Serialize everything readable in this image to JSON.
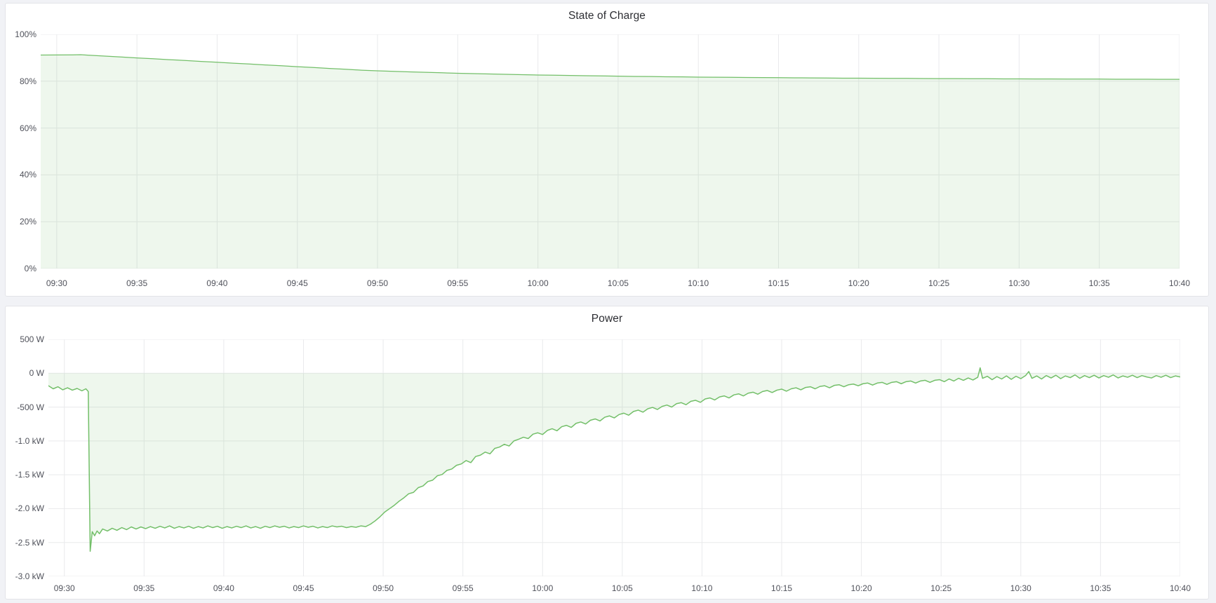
{
  "panels": [
    {
      "title": "State of Charge"
    },
    {
      "title": "Power"
    }
  ],
  "colors": {
    "line_green": "#73bf69",
    "fill_green": "rgba(115,191,105,0.12)",
    "grid": "#e9eaec",
    "axis_text": "#50525b",
    "panel_bg": "#ffffff",
    "page_bg": "#f1f2f6"
  },
  "chart_data": [
    {
      "type": "area",
      "title": "State of Charge",
      "series_name": "State of Charge",
      "unit": "percent",
      "legend": "none",
      "grid": "on",
      "baseline": 0,
      "x_axis": {
        "range_minutes": [
          -1,
          70
        ],
        "tick_minutes": [
          0,
          5,
          10,
          15,
          20,
          25,
          30,
          35,
          40,
          45,
          50,
          55,
          60,
          65,
          70
        ],
        "tick_labels": [
          "09:30",
          "09:35",
          "09:40",
          "09:45",
          "09:50",
          "09:55",
          "10:00",
          "10:05",
          "10:10",
          "10:15",
          "10:20",
          "10:25",
          "10:30",
          "10:35",
          "10:40"
        ]
      },
      "y_axis": {
        "range": [
          0,
          100
        ],
        "tick_values": [
          0,
          20,
          40,
          60,
          80,
          100
        ],
        "tick_labels": [
          "0%",
          "20%",
          "40%",
          "60%",
          "80%",
          "100%"
        ]
      },
      "points": [
        [
          -1,
          91.15
        ],
        [
          0,
          91.2
        ],
        [
          1,
          91.25
        ],
        [
          1.5,
          91.3
        ],
        [
          2,
          91.1
        ],
        [
          3,
          90.7
        ],
        [
          4,
          90.35
        ],
        [
          5,
          89.95
        ],
        [
          6,
          89.6
        ],
        [
          7,
          89.2
        ],
        [
          8,
          88.85
        ],
        [
          9,
          88.45
        ],
        [
          10,
          88.1
        ],
        [
          11,
          87.7
        ],
        [
          12,
          87.35
        ],
        [
          13,
          86.95
        ],
        [
          14,
          86.6
        ],
        [
          15,
          86.2
        ],
        [
          16,
          85.85
        ],
        [
          17,
          85.45
        ],
        [
          18,
          85.1
        ],
        [
          19,
          84.7
        ],
        [
          20,
          84.45
        ],
        [
          21,
          84.2
        ],
        [
          22,
          84.0
        ],
        [
          23,
          83.8
        ],
        [
          24,
          83.6
        ],
        [
          25,
          83.4
        ],
        [
          26,
          83.25
        ],
        [
          27,
          83.1
        ],
        [
          28,
          82.95
        ],
        [
          29,
          82.8
        ],
        [
          30,
          82.65
        ],
        [
          31,
          82.55
        ],
        [
          32,
          82.45
        ],
        [
          33,
          82.35
        ],
        [
          34,
          82.25
        ],
        [
          35,
          82.15
        ],
        [
          36,
          82.05
        ],
        [
          37,
          82.0
        ],
        [
          38,
          81.9
        ],
        [
          39,
          81.85
        ],
        [
          40,
          81.75
        ],
        [
          41,
          81.7
        ],
        [
          42,
          81.65
        ],
        [
          43,
          81.6
        ],
        [
          44,
          81.55
        ],
        [
          45,
          81.5
        ],
        [
          46,
          81.45
        ],
        [
          47,
          81.4
        ],
        [
          48,
          81.35
        ],
        [
          49,
          81.3
        ],
        [
          50,
          81.3
        ],
        [
          51,
          81.25
        ],
        [
          52,
          81.2
        ],
        [
          53,
          81.2
        ],
        [
          54,
          81.15
        ],
        [
          55,
          81.1
        ],
        [
          56,
          81.1
        ],
        [
          57,
          81.05
        ],
        [
          58,
          81.05
        ],
        [
          59,
          81.0
        ],
        [
          60,
          81.0
        ],
        [
          61,
          80.95
        ],
        [
          62,
          80.95
        ],
        [
          63,
          80.9
        ],
        [
          64,
          80.9
        ],
        [
          65,
          80.9
        ],
        [
          66,
          80.85
        ],
        [
          67,
          80.85
        ],
        [
          68,
          80.85
        ],
        [
          69,
          80.8
        ],
        [
          70,
          80.8
        ]
      ]
    },
    {
      "type": "area",
      "title": "Power",
      "series_name": "Power",
      "unit": "watt",
      "legend": "none",
      "grid": "on",
      "baseline": 0,
      "x_axis": {
        "range_minutes": [
          -1,
          70
        ],
        "tick_minutes": [
          0,
          5,
          10,
          15,
          20,
          25,
          30,
          35,
          40,
          45,
          50,
          55,
          60,
          65,
          70
        ],
        "tick_labels": [
          "09:30",
          "09:35",
          "09:40",
          "09:45",
          "09:50",
          "09:55",
          "10:00",
          "10:05",
          "10:10",
          "10:15",
          "10:20",
          "10:25",
          "10:30",
          "10:35",
          "10:40"
        ]
      },
      "y_axis": {
        "range": [
          -3000,
          500
        ],
        "tick_values": [
          500,
          0,
          -500,
          -1000,
          -1500,
          -2000,
          -2500,
          -3000
        ],
        "tick_labels": [
          "500 W",
          "0 W",
          "-500 W",
          "-1.0 kW",
          "-1.5 kW",
          "-2.0 kW",
          "-2.5 kW",
          "-3.0 kW"
        ]
      },
      "points": [
        [
          -1,
          -185
        ],
        [
          -0.7,
          -230
        ],
        [
          -0.4,
          -200
        ],
        [
          -0.1,
          -245
        ],
        [
          0.2,
          -215
        ],
        [
          0.5,
          -250
        ],
        [
          0.8,
          -225
        ],
        [
          1.1,
          -260
        ],
        [
          1.35,
          -230
        ],
        [
          1.5,
          -270
        ],
        [
          1.62,
          -2630
        ],
        [
          1.75,
          -2340
        ],
        [
          1.9,
          -2400
        ],
        [
          2.05,
          -2330
        ],
        [
          2.2,
          -2370
        ],
        [
          2.4,
          -2300
        ],
        [
          2.7,
          -2330
        ],
        [
          3,
          -2290
        ],
        [
          3.3,
          -2320
        ],
        [
          3.6,
          -2280
        ],
        [
          3.9,
          -2310
        ],
        [
          4.2,
          -2270
        ],
        [
          4.5,
          -2300
        ],
        [
          4.8,
          -2270
        ],
        [
          5.1,
          -2295
        ],
        [
          5.4,
          -2265
        ],
        [
          5.7,
          -2290
        ],
        [
          6,
          -2260
        ],
        [
          6.3,
          -2285
        ],
        [
          6.6,
          -2255
        ],
        [
          6.9,
          -2290
        ],
        [
          7.2,
          -2265
        ],
        [
          7.5,
          -2285
        ],
        [
          7.8,
          -2260
        ],
        [
          8.1,
          -2290
        ],
        [
          8.4,
          -2265
        ],
        [
          8.7,
          -2285
        ],
        [
          9,
          -2255
        ],
        [
          9.3,
          -2280
        ],
        [
          9.6,
          -2260
        ],
        [
          9.9,
          -2290
        ],
        [
          10.2,
          -2265
        ],
        [
          10.5,
          -2285
        ],
        [
          10.8,
          -2260
        ],
        [
          11.1,
          -2280
        ],
        [
          11.4,
          -2255
        ],
        [
          11.7,
          -2285
        ],
        [
          12,
          -2265
        ],
        [
          12.3,
          -2290
        ],
        [
          12.6,
          -2260
        ],
        [
          12.9,
          -2280
        ],
        [
          13.2,
          -2255
        ],
        [
          13.5,
          -2275
        ],
        [
          13.8,
          -2260
        ],
        [
          14.1,
          -2285
        ],
        [
          14.4,
          -2265
        ],
        [
          14.7,
          -2280
        ],
        [
          15,
          -2255
        ],
        [
          15.3,
          -2275
        ],
        [
          15.6,
          -2260
        ],
        [
          15.9,
          -2285
        ],
        [
          16.2,
          -2265
        ],
        [
          16.5,
          -2280
        ],
        [
          16.8,
          -2255
        ],
        [
          17.1,
          -2270
        ],
        [
          17.4,
          -2260
        ],
        [
          17.7,
          -2280
        ],
        [
          18,
          -2265
        ],
        [
          18.3,
          -2275
        ],
        [
          18.6,
          -2255
        ],
        [
          18.9,
          -2265
        ],
        [
          19.2,
          -2230
        ],
        [
          19.5,
          -2180
        ],
        [
          19.8,
          -2120
        ],
        [
          20.1,
          -2050
        ],
        [
          20.4,
          -2000
        ],
        [
          20.7,
          -1950
        ],
        [
          21,
          -1890
        ],
        [
          21.3,
          -1840
        ],
        [
          21.6,
          -1780
        ],
        [
          21.9,
          -1760
        ],
        [
          22.2,
          -1690
        ],
        [
          22.5,
          -1665
        ],
        [
          22.8,
          -1600
        ],
        [
          23.1,
          -1580
        ],
        [
          23.4,
          -1515
        ],
        [
          23.7,
          -1495
        ],
        [
          24,
          -1435
        ],
        [
          24.3,
          -1415
        ],
        [
          24.6,
          -1360
        ],
        [
          24.9,
          -1340
        ],
        [
          25.2,
          -1290
        ],
        [
          25.5,
          -1320
        ],
        [
          25.8,
          -1230
        ],
        [
          26.1,
          -1210
        ],
        [
          26.4,
          -1165
        ],
        [
          26.7,
          -1190
        ],
        [
          27,
          -1110
        ],
        [
          27.3,
          -1090
        ],
        [
          27.6,
          -1050
        ],
        [
          27.9,
          -1075
        ],
        [
          28.2,
          -1000
        ],
        [
          28.5,
          -975
        ],
        [
          28.8,
          -945
        ],
        [
          29.1,
          -965
        ],
        [
          29.4,
          -900
        ],
        [
          29.7,
          -880
        ],
        [
          30,
          -905
        ],
        [
          30.3,
          -845
        ],
        [
          30.6,
          -820
        ],
        [
          30.9,
          -850
        ],
        [
          31.2,
          -790
        ],
        [
          31.5,
          -770
        ],
        [
          31.8,
          -800
        ],
        [
          32.1,
          -740
        ],
        [
          32.4,
          -720
        ],
        [
          32.7,
          -750
        ],
        [
          33,
          -695
        ],
        [
          33.3,
          -675
        ],
        [
          33.6,
          -705
        ],
        [
          33.9,
          -650
        ],
        [
          34.2,
          -630
        ],
        [
          34.5,
          -660
        ],
        [
          34.8,
          -610
        ],
        [
          35.1,
          -590
        ],
        [
          35.4,
          -620
        ],
        [
          35.7,
          -565
        ],
        [
          36,
          -545
        ],
        [
          36.3,
          -575
        ],
        [
          36.6,
          -525
        ],
        [
          36.9,
          -505
        ],
        [
          37.2,
          -535
        ],
        [
          37.5,
          -490
        ],
        [
          37.8,
          -470
        ],
        [
          38.1,
          -500
        ],
        [
          38.4,
          -450
        ],
        [
          38.7,
          -435
        ],
        [
          39,
          -465
        ],
        [
          39.3,
          -415
        ],
        [
          39.6,
          -400
        ],
        [
          39.9,
          -430
        ],
        [
          40.2,
          -380
        ],
        [
          40.5,
          -365
        ],
        [
          40.8,
          -395
        ],
        [
          41.1,
          -350
        ],
        [
          41.4,
          -335
        ],
        [
          41.7,
          -365
        ],
        [
          42,
          -320
        ],
        [
          42.3,
          -305
        ],
        [
          42.6,
          -335
        ],
        [
          42.9,
          -295
        ],
        [
          43.2,
          -280
        ],
        [
          43.5,
          -310
        ],
        [
          43.8,
          -270
        ],
        [
          44.1,
          -255
        ],
        [
          44.4,
          -285
        ],
        [
          44.7,
          -250
        ],
        [
          45,
          -235
        ],
        [
          45.3,
          -265
        ],
        [
          45.6,
          -230
        ],
        [
          45.9,
          -215
        ],
        [
          46.2,
          -245
        ],
        [
          46.5,
          -210
        ],
        [
          46.8,
          -200
        ],
        [
          47.1,
          -230
        ],
        [
          47.4,
          -195
        ],
        [
          47.7,
          -185
        ],
        [
          48,
          -215
        ],
        [
          48.3,
          -180
        ],
        [
          48.6,
          -170
        ],
        [
          48.9,
          -200
        ],
        [
          49.2,
          -170
        ],
        [
          49.5,
          -160
        ],
        [
          49.8,
          -185
        ],
        [
          50.1,
          -155
        ],
        [
          50.4,
          -145
        ],
        [
          50.7,
          -175
        ],
        [
          51,
          -145
        ],
        [
          51.3,
          -135
        ],
        [
          51.6,
          -165
        ],
        [
          51.9,
          -135
        ],
        [
          52.2,
          -125
        ],
        [
          52.5,
          -155
        ],
        [
          52.8,
          -125
        ],
        [
          53.1,
          -115
        ],
        [
          53.4,
          -145
        ],
        [
          53.7,
          -115
        ],
        [
          54,
          -105
        ],
        [
          54.3,
          -135
        ],
        [
          54.6,
          -105
        ],
        [
          54.9,
          -95
        ],
        [
          55.2,
          -125
        ],
        [
          55.5,
          -85
        ],
        [
          55.8,
          -115
        ],
        [
          56.1,
          -75
        ],
        [
          56.4,
          -105
        ],
        [
          56.7,
          -70
        ],
        [
          57,
          -100
        ],
        [
          57.3,
          -60
        ],
        [
          57.45,
          80
        ],
        [
          57.6,
          -75
        ],
        [
          57.9,
          -45
        ],
        [
          58.2,
          -95
        ],
        [
          58.5,
          -50
        ],
        [
          58.8,
          -85
        ],
        [
          59.1,
          -40
        ],
        [
          59.4,
          -90
        ],
        [
          59.7,
          -45
        ],
        [
          60,
          -80
        ],
        [
          60.3,
          -35
        ],
        [
          60.5,
          25
        ],
        [
          60.7,
          -75
        ],
        [
          61,
          -40
        ],
        [
          61.3,
          -85
        ],
        [
          61.6,
          -35
        ],
        [
          61.9,
          -70
        ],
        [
          62.2,
          -30
        ],
        [
          62.5,
          -80
        ],
        [
          62.8,
          -40
        ],
        [
          63.1,
          -65
        ],
        [
          63.4,
          -25
        ],
        [
          63.7,
          -75
        ],
        [
          64,
          -35
        ],
        [
          64.3,
          -65
        ],
        [
          64.6,
          -30
        ],
        [
          64.9,
          -70
        ],
        [
          65.2,
          -35
        ],
        [
          65.5,
          -60
        ],
        [
          65.8,
          -25
        ],
        [
          66.1,
          -70
        ],
        [
          66.4,
          -40
        ],
        [
          66.7,
          -60
        ],
        [
          67,
          -30
        ],
        [
          67.3,
          -65
        ],
        [
          67.6,
          -35
        ],
        [
          67.9,
          -55
        ],
        [
          68.2,
          -70
        ],
        [
          68.5,
          -35
        ],
        [
          68.8,
          -60
        ],
        [
          69.1,
          -30
        ],
        [
          69.4,
          -65
        ],
        [
          69.7,
          -40
        ],
        [
          70,
          -55
        ]
      ]
    }
  ]
}
